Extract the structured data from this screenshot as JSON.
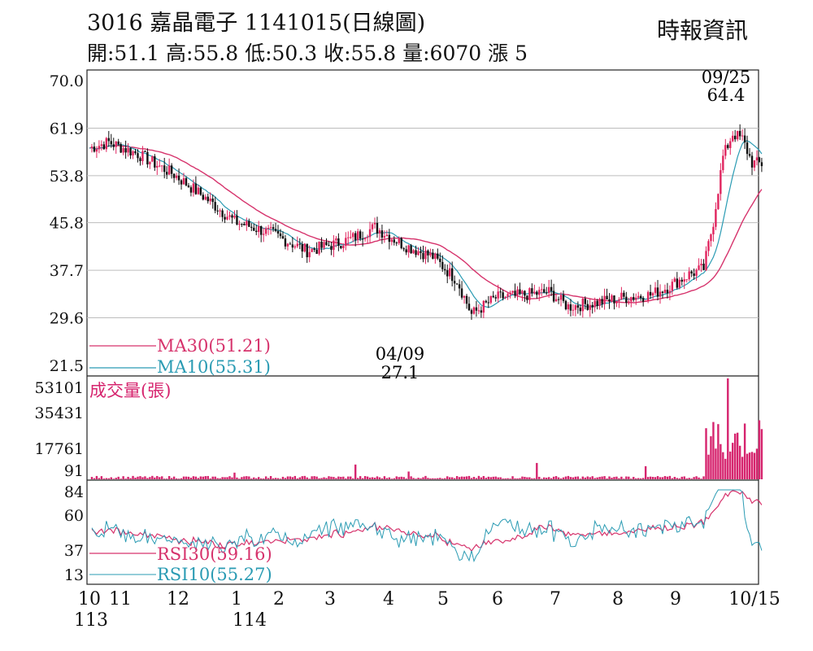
{
  "header": {
    "title": "3016  嘉晶電子 1141015(日線圖)",
    "ohlc": "開:51.1 高:55.8 低:50.3 收:55.8 量:6070 漲 5",
    "source": "時報資訊"
  },
  "chart_data": [
    {
      "type": "candlestick",
      "title": "3016  嘉晶電子 1141015(日線圖)",
      "period": "2024/10 – 2025/10/15",
      "ylim": [
        21.5,
        70.0
      ],
      "yticks": [
        "70.0",
        "61.9",
        "53.8",
        "45.8",
        "37.7",
        "29.6",
        "21.5"
      ],
      "xticks": [
        "10",
        "11",
        "12",
        "1",
        "2",
        "3",
        "4",
        "5",
        "6",
        "7",
        "8",
        "9",
        "10/15"
      ],
      "xticks_year": [
        "113",
        "114"
      ],
      "colors": {
        "up": "#e0245e",
        "down": "#111111",
        "ma30": "#d6336c",
        "ma10": "#2a9bb3"
      },
      "annotations": [
        {
          "date": "09/25",
          "value": "64.4",
          "kind": "high"
        },
        {
          "date": "04/09",
          "value": "27.1",
          "kind": "low"
        }
      ],
      "ma_legend": [
        {
          "name": "MA30",
          "value": "(51.21)",
          "color": "#d6336c"
        },
        {
          "name": "MA10",
          "value": "(55.31)",
          "color": "#2a9bb3"
        }
      ],
      "key_closes": [
        {
          "date": "2024/10",
          "close": 58.9
        },
        {
          "date": "2024/12",
          "close": 47.0
        },
        {
          "date": "2025/01",
          "close": 44.0
        },
        {
          "date": "2025/02",
          "close": 42.0
        },
        {
          "date": "2025/03",
          "close": 43.0
        },
        {
          "date": "2025/04/09",
          "close": 30.2
        },
        {
          "date": "2025/05",
          "close": 33.5
        },
        {
          "date": "2025/06",
          "close": 31.5
        },
        {
          "date": "2025/07",
          "close": 32.0
        },
        {
          "date": "2025/08",
          "close": 34.0
        },
        {
          "date": "2025/09/25",
          "close": 60.0
        },
        {
          "date": "2025/10/15",
          "close": 55.8
        }
      ]
    },
    {
      "type": "bar",
      "label": "成交量(張)",
      "yticks": [
        "53101",
        "35431",
        "17761",
        "91"
      ],
      "peak": 53101,
      "color": "#d6246e"
    },
    {
      "type": "line",
      "yticks": [
        "84",
        "60",
        "37",
        "13"
      ],
      "series": [
        {
          "name": "RSI30",
          "value": "(59.16)",
          "color": "#d6336c"
        },
        {
          "name": "RSI10",
          "value": "(55.27)",
          "color": "#2a9bb3"
        }
      ]
    }
  ]
}
